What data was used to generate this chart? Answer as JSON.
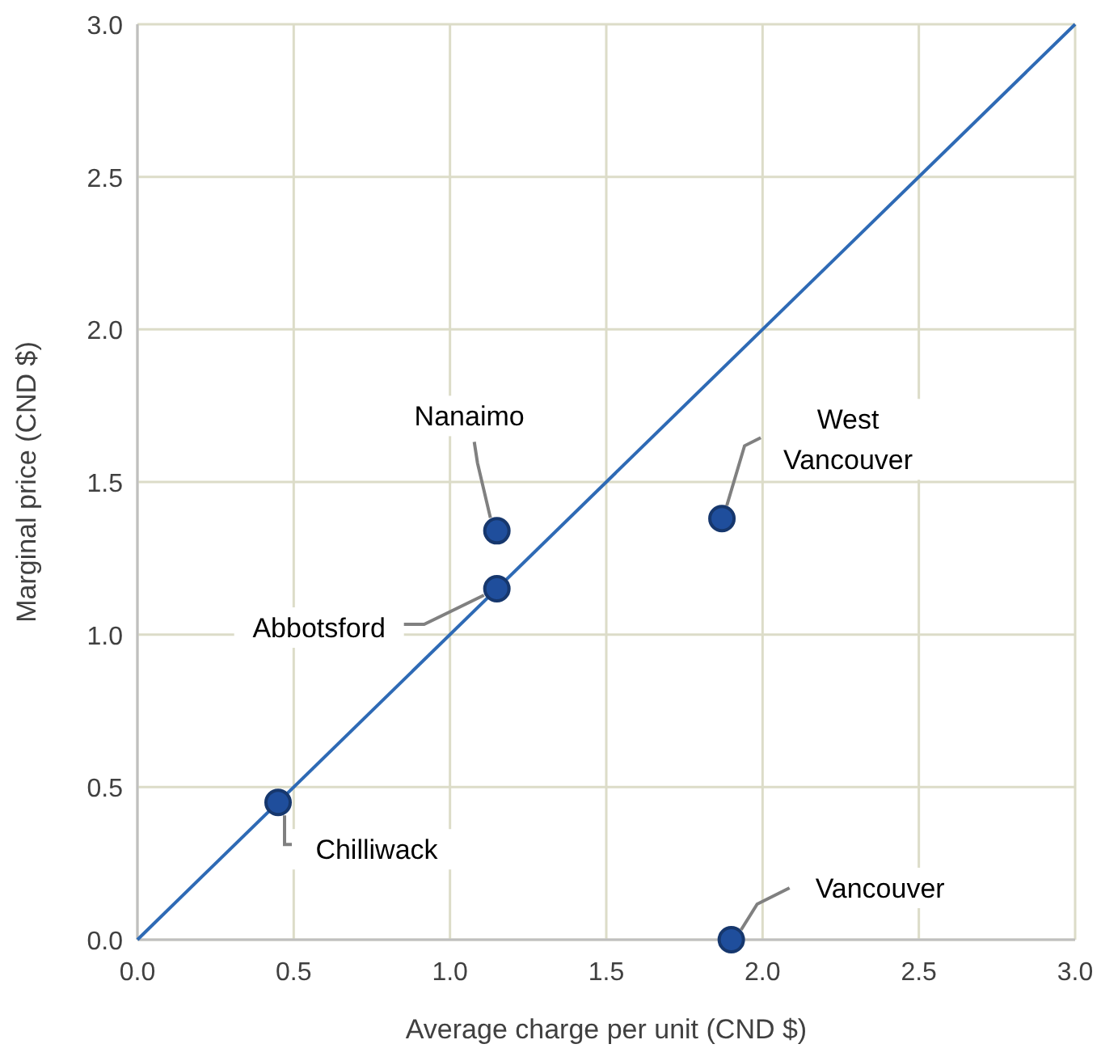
{
  "chart_data": {
    "type": "scatter",
    "xlabel": "Average charge per unit (CND $)",
    "ylabel": "Marginal price (CND $)",
    "xlim": [
      0,
      3
    ],
    "ylim": [
      0,
      3
    ],
    "xticks": [
      {
        "value": 0,
        "label": "0.0"
      },
      {
        "value": 0.5,
        "label": "0.5"
      },
      {
        "value": 1,
        "label": "1.0"
      },
      {
        "value": 1.5,
        "label": "1.5"
      },
      {
        "value": 2,
        "label": "2.0"
      },
      {
        "value": 2.5,
        "label": "2.5"
      },
      {
        "value": 3,
        "label": "3.0"
      }
    ],
    "yticks": [
      {
        "value": 0,
        "label": "0.0"
      },
      {
        "value": 0.5,
        "label": "0.5"
      },
      {
        "value": 1,
        "label": "1.0"
      },
      {
        "value": 1.5,
        "label": "1.5"
      },
      {
        "value": 2,
        "label": "2.0"
      },
      {
        "value": 2.5,
        "label": "2.5"
      },
      {
        "value": 3,
        "label": "3.0"
      }
    ],
    "grid": true,
    "series": [
      {
        "type": "line",
        "color": "#2e6ab5",
        "x": [
          0,
          3
        ],
        "values": [
          0,
          3
        ]
      },
      {
        "color": "#1f4e9c",
        "marker": "circle",
        "x": [
          0.45,
          1.15,
          1.15,
          1.87,
          1.9
        ],
        "values": [
          0.45,
          1.15,
          1.34,
          1.38,
          0
        ]
      }
    ],
    "annotations": [
      {
        "text": "Chilliwack",
        "x": 0.45,
        "y": 0.45
      },
      {
        "text": "Abbotsford",
        "x": 1.15,
        "y": 1.15
      },
      {
        "text": "Nanaimo",
        "x": 1.15,
        "y": 1.34
      },
      {
        "text": "West Vancouver",
        "x": 1.87,
        "y": 1.38
      },
      {
        "text": "Vancouver",
        "x": 1.9,
        "y": 0
      }
    ]
  }
}
